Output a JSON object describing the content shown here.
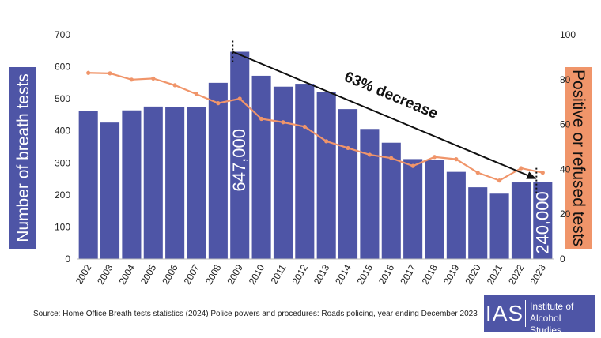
{
  "chart_data": {
    "type": "bar+line",
    "categories": [
      "2002",
      "2003",
      "2004",
      "2005",
      "2006",
      "2007",
      "2008",
      "2009",
      "2010",
      "2011",
      "2012",
      "2013",
      "2014",
      "2015",
      "2016",
      "2017",
      "2018",
      "2019",
      "2020",
      "2021",
      "2022",
      "2023"
    ],
    "series": [
      {
        "name": "Number of breath tests",
        "type": "bar",
        "axis": "left",
        "color": "#4e55a6",
        "values": [
          462,
          426,
          464,
          476,
          474,
          474,
          550,
          647,
          572,
          538,
          547,
          522,
          468,
          406,
          363,
          312,
          309,
          272,
          224,
          204,
          239,
          240
        ]
      },
      {
        "name": "Positive or refused tests",
        "type": "line",
        "axis": "right",
        "color": "#f0956a",
        "values": [
          83,
          82.8,
          80,
          80.5,
          77.5,
          73.5,
          69.5,
          71.5,
          62.5,
          61,
          59,
          52.5,
          49.5,
          46.5,
          45,
          41.5,
          45.5,
          44.5,
          38.5,
          35,
          40.5,
          38.5
        ]
      }
    ],
    "y_left": {
      "label": "Number of breath tests",
      "range": [
        0,
        700
      ],
      "ticks": [
        0,
        100,
        200,
        300,
        400,
        500,
        600,
        700
      ]
    },
    "y_right": {
      "label": "Positive or refused tests",
      "range": [
        0,
        100
      ],
      "ticks": [
        0,
        20,
        40,
        60,
        80,
        100
      ]
    },
    "grid": false,
    "annotations": {
      "trend_label": "63% decrease",
      "start_label": "647,000",
      "end_label": "240,000",
      "start_category": "2009",
      "end_category": "2023"
    }
  },
  "source": "Source: Home Office Breath tests statistics (2024) Police powers and procedures: Roads policing, year ending December 2023",
  "logo": {
    "abbr": "IAS",
    "name": "Institute of Alcohol Studies",
    "color": "#4e55a6"
  },
  "colors": {
    "bar": "#4e55a6",
    "line": "#f0956a",
    "right_label_bg": "#f0956a",
    "left_label_bg": "#4e55a6"
  }
}
